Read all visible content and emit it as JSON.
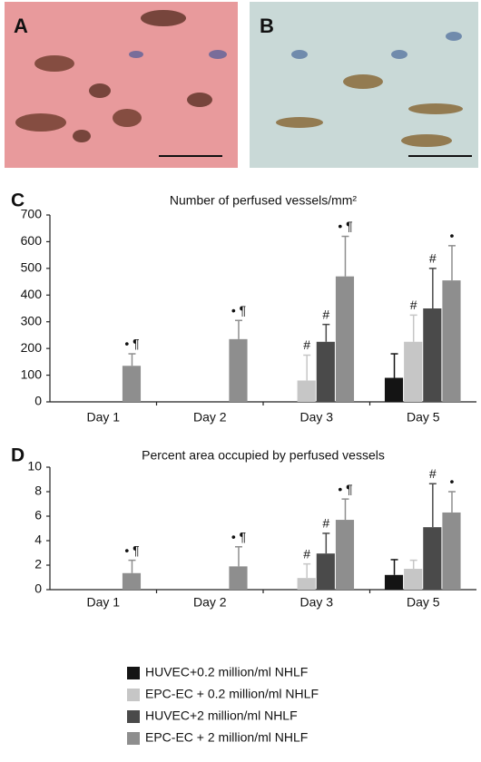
{
  "images": [
    {
      "label": "A"
    },
    {
      "label": "B"
    }
  ],
  "chart_data": [
    {
      "type": "bar",
      "panel_label": "C",
      "title": "Number of perfused vessels/mm²",
      "categories": [
        "Day 1",
        "Day 2",
        "Day 3",
        "Day 5"
      ],
      "ylim": [
        0,
        700
      ],
      "yticks": [
        0,
        100,
        200,
        300,
        400,
        500,
        600,
        700
      ],
      "series": [
        {
          "name": "HUVEC+0.2 million/ml NHLF",
          "color": "#141414",
          "values": [
            null,
            null,
            null,
            90
          ],
          "errors": [
            null,
            null,
            null,
            90
          ],
          "annotations": [
            null,
            null,
            null,
            null
          ]
        },
        {
          "name": "EPC-EC + 0.2 million/ml NHLF",
          "color": "#c6c6c6",
          "values": [
            null,
            null,
            80,
            225
          ],
          "errors": [
            null,
            null,
            95,
            100
          ],
          "annotations": [
            null,
            null,
            "#",
            "#"
          ]
        },
        {
          "name": "HUVEC+2 million/ml NHLF",
          "color": "#4a4a4a",
          "values": [
            null,
            null,
            225,
            350
          ],
          "errors": [
            null,
            null,
            65,
            150
          ],
          "annotations": [
            null,
            null,
            "#",
            "#"
          ]
        },
        {
          "name": "EPC-EC + 2 million/ml NHLF",
          "color": "#8e8e8e",
          "values": [
            135,
            235,
            470,
            455
          ],
          "errors": [
            45,
            70,
            150,
            130
          ],
          "annotations": [
            "• ¶",
            "• ¶",
            "• ¶",
            "•"
          ]
        }
      ]
    },
    {
      "type": "bar",
      "panel_label": "D",
      "title": "Percent area occupied by perfused vessels",
      "categories": [
        "Day 1",
        "Day 2",
        "Day 3",
        "Day 5"
      ],
      "ylim": [
        0,
        10
      ],
      "yticks": [
        0,
        2,
        4,
        6,
        8,
        10
      ],
      "series": [
        {
          "color": "#141414",
          "values": [
            null,
            null,
            null,
            1.2
          ],
          "errors": [
            null,
            null,
            null,
            1.25
          ],
          "annotations": [
            null,
            null,
            null,
            null
          ]
        },
        {
          "color": "#c6c6c6",
          "values": [
            null,
            null,
            0.95,
            1.7
          ],
          "errors": [
            null,
            null,
            1.15,
            0.7
          ],
          "annotations": [
            null,
            null,
            "#",
            null
          ]
        },
        {
          "color": "#4a4a4a",
          "values": [
            null,
            null,
            2.95,
            5.1
          ],
          "errors": [
            null,
            null,
            1.65,
            3.55
          ],
          "annotations": [
            null,
            null,
            "#",
            "#"
          ]
        },
        {
          "color": "#8e8e8e",
          "values": [
            1.35,
            1.9,
            5.7,
            6.3
          ],
          "errors": [
            1.05,
            1.6,
            1.7,
            1.7
          ],
          "annotations": [
            "• ¶",
            "• ¶",
            "• ¶",
            "•"
          ]
        }
      ]
    }
  ]
}
